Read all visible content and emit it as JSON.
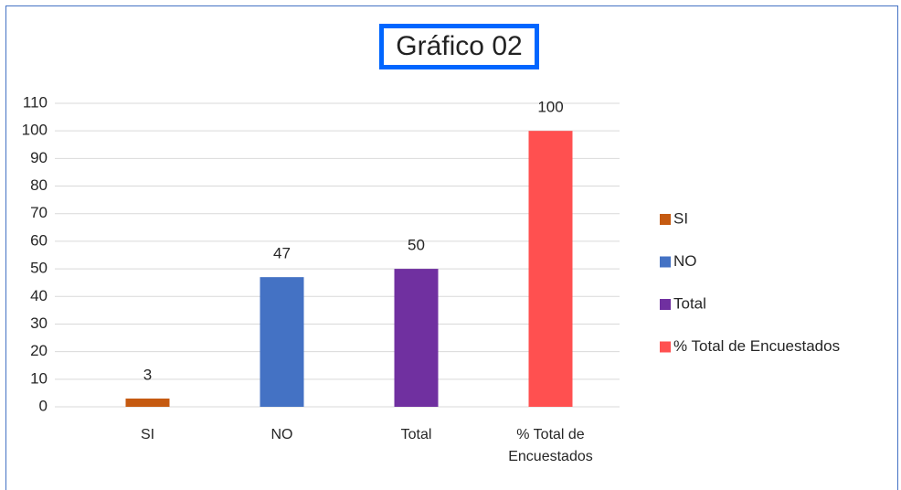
{
  "chart_data": {
    "type": "bar",
    "title": "Gráfico 02",
    "categories": [
      "SI",
      "NO",
      "Total",
      "% Total de Encuestados"
    ],
    "values": [
      3,
      47,
      50,
      100
    ],
    "colors": [
      "#c55a11",
      "#4472c4",
      "#7030a0",
      "#ff5050"
    ],
    "ylim": [
      0,
      110
    ],
    "yticks": [
      0,
      10,
      20,
      30,
      40,
      50,
      60,
      70,
      80,
      90,
      100,
      110
    ],
    "grid": true,
    "legend": "right"
  }
}
